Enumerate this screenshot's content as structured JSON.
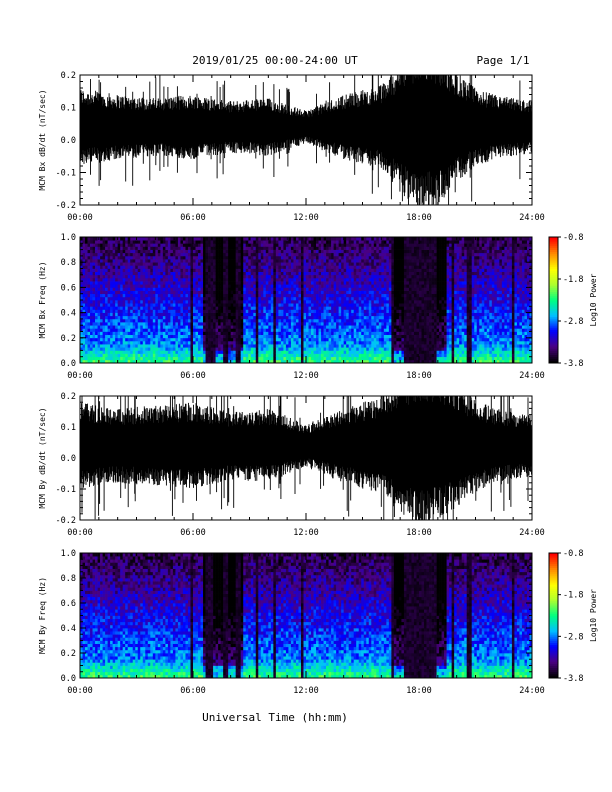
{
  "header": {
    "title": "2019/01/25  00:00-24:00 UT",
    "page": "Page 1/1"
  },
  "footer": {
    "xlabel": "Universal Time (hh:mm)"
  },
  "chart_data": [
    {
      "type": "line",
      "ylabel": "MCM Bx dB/dt (nT/sec)",
      "x_ticks": [
        "00:00",
        "06:00",
        "12:00",
        "18:00",
        "24:00"
      ],
      "xlim_hours": [
        0,
        24
      ],
      "ylim": [
        -0.2,
        0.2
      ],
      "y_ticks": [
        "0.2",
        "0.1",
        "0.0",
        "-0.1",
        "-0.2"
      ],
      "y_tick_values": [
        0.2,
        0.1,
        0.0,
        -0.1,
        -0.2
      ],
      "baseline": 0.04,
      "envelope_hours": [
        0,
        2,
        4,
        6,
        8,
        10,
        12,
        14,
        16,
        17,
        18,
        19,
        20,
        21,
        22,
        24
      ],
      "envelope_amplitude": [
        0.12,
        0.1,
        0.09,
        0.1,
        0.08,
        0.09,
        0.05,
        0.1,
        0.13,
        0.2,
        0.26,
        0.24,
        0.17,
        0.12,
        0.1,
        0.08
      ],
      "grid": false
    },
    {
      "type": "heatmap",
      "ylabel": "MCM Bx Freq (Hz)",
      "x_ticks": [
        "00:00",
        "06:00",
        "12:00",
        "18:00",
        "24:00"
      ],
      "xlim_hours": [
        0,
        24
      ],
      "ylim": [
        0.0,
        1.0
      ],
      "y_ticks": [
        "1.0",
        "0.8",
        "0.6",
        "0.4",
        "0.2",
        "0.0"
      ],
      "y_tick_values": [
        1.0,
        0.8,
        0.6,
        0.4,
        0.2,
        0.0
      ],
      "colorbar": {
        "label": "Log10 Power",
        "ticks": [
          "-0.8",
          "-1.8",
          "-2.8",
          "-3.8"
        ],
        "tick_values": [
          -0.8,
          -1.8,
          -2.8,
          -3.8
        ],
        "range": [
          -3.8,
          -0.8
        ],
        "colors": [
          "#000000",
          "#4b0082",
          "#0000ff",
          "#00bfff",
          "#00ff80",
          "#adff2f",
          "#ffff00",
          "#ff8c00",
          "#ff0000"
        ]
      },
      "dark_bands_hours": [
        [
          5.9,
          6.0
        ],
        [
          6.7,
          7.2
        ],
        [
          7.6,
          7.8
        ],
        [
          8.3,
          8.5
        ],
        [
          9.4,
          9.5
        ],
        [
          10.3,
          10.4
        ],
        [
          11.7,
          11.9
        ],
        [
          16.5,
          16.7
        ],
        [
          17.2,
          18.9
        ],
        [
          19.7,
          19.8
        ],
        [
          20.6,
          20.8
        ],
        [
          22.9,
          23.0
        ]
      ],
      "quiet_hours": [
        [
          6.5,
          8.6
        ],
        [
          16.5,
          19.5
        ]
      ]
    },
    {
      "type": "line",
      "ylabel": "MCM By dB/dt (nT/sec)",
      "x_ticks": [
        "00:00",
        "06:00",
        "12:00",
        "18:00",
        "24:00"
      ],
      "xlim_hours": [
        0,
        24
      ],
      "ylim": [
        -0.2,
        0.2
      ],
      "y_ticks": [
        "0.2",
        "0.1",
        "0.0",
        "-0.1",
        "-0.2"
      ],
      "y_tick_values": [
        0.2,
        0.1,
        0.0,
        -0.1,
        -0.2
      ],
      "baseline": 0.04,
      "envelope_hours": [
        0,
        2,
        4,
        6,
        8,
        10,
        12,
        14,
        16,
        17,
        18,
        19,
        20,
        21,
        22,
        24
      ],
      "envelope_amplitude": [
        0.14,
        0.12,
        0.13,
        0.14,
        0.11,
        0.12,
        0.07,
        0.12,
        0.16,
        0.22,
        0.26,
        0.24,
        0.2,
        0.15,
        0.12,
        0.1
      ],
      "grid": false
    },
    {
      "type": "heatmap",
      "ylabel": "MCM By Freq (Hz)",
      "x_ticks": [
        "00:00",
        "06:00",
        "12:00",
        "18:00",
        "24:00"
      ],
      "xlim_hours": [
        0,
        24
      ],
      "ylim": [
        0.0,
        1.0
      ],
      "y_ticks": [
        "1.0",
        "0.8",
        "0.6",
        "0.4",
        "0.2",
        "0.0"
      ],
      "y_tick_values": [
        1.0,
        0.8,
        0.6,
        0.4,
        0.2,
        0.0
      ],
      "colorbar": {
        "label": "Log10 Power",
        "ticks": [
          "-0.8",
          "-1.8",
          "-2.8",
          "-3.8"
        ],
        "tick_values": [
          -0.8,
          -1.8,
          -2.8,
          -3.8
        ],
        "range": [
          -3.8,
          -0.8
        ],
        "colors": [
          "#000000",
          "#4b0082",
          "#0000ff",
          "#00bfff",
          "#00ff80",
          "#adff2f",
          "#ffff00",
          "#ff8c00",
          "#ff0000"
        ]
      },
      "dark_bands_hours": [
        [
          5.9,
          6.0
        ],
        [
          6.7,
          7.1
        ],
        [
          7.6,
          7.8
        ],
        [
          8.3,
          8.5
        ],
        [
          9.4,
          9.5
        ],
        [
          10.3,
          10.4
        ],
        [
          11.7,
          11.9
        ],
        [
          16.5,
          16.7
        ],
        [
          17.2,
          18.9
        ],
        [
          19.7,
          19.8
        ],
        [
          20.6,
          20.8
        ],
        [
          22.9,
          23.0
        ]
      ],
      "quiet_hours": [
        [
          6.5,
          8.6
        ],
        [
          16.5,
          19.5
        ]
      ]
    }
  ]
}
